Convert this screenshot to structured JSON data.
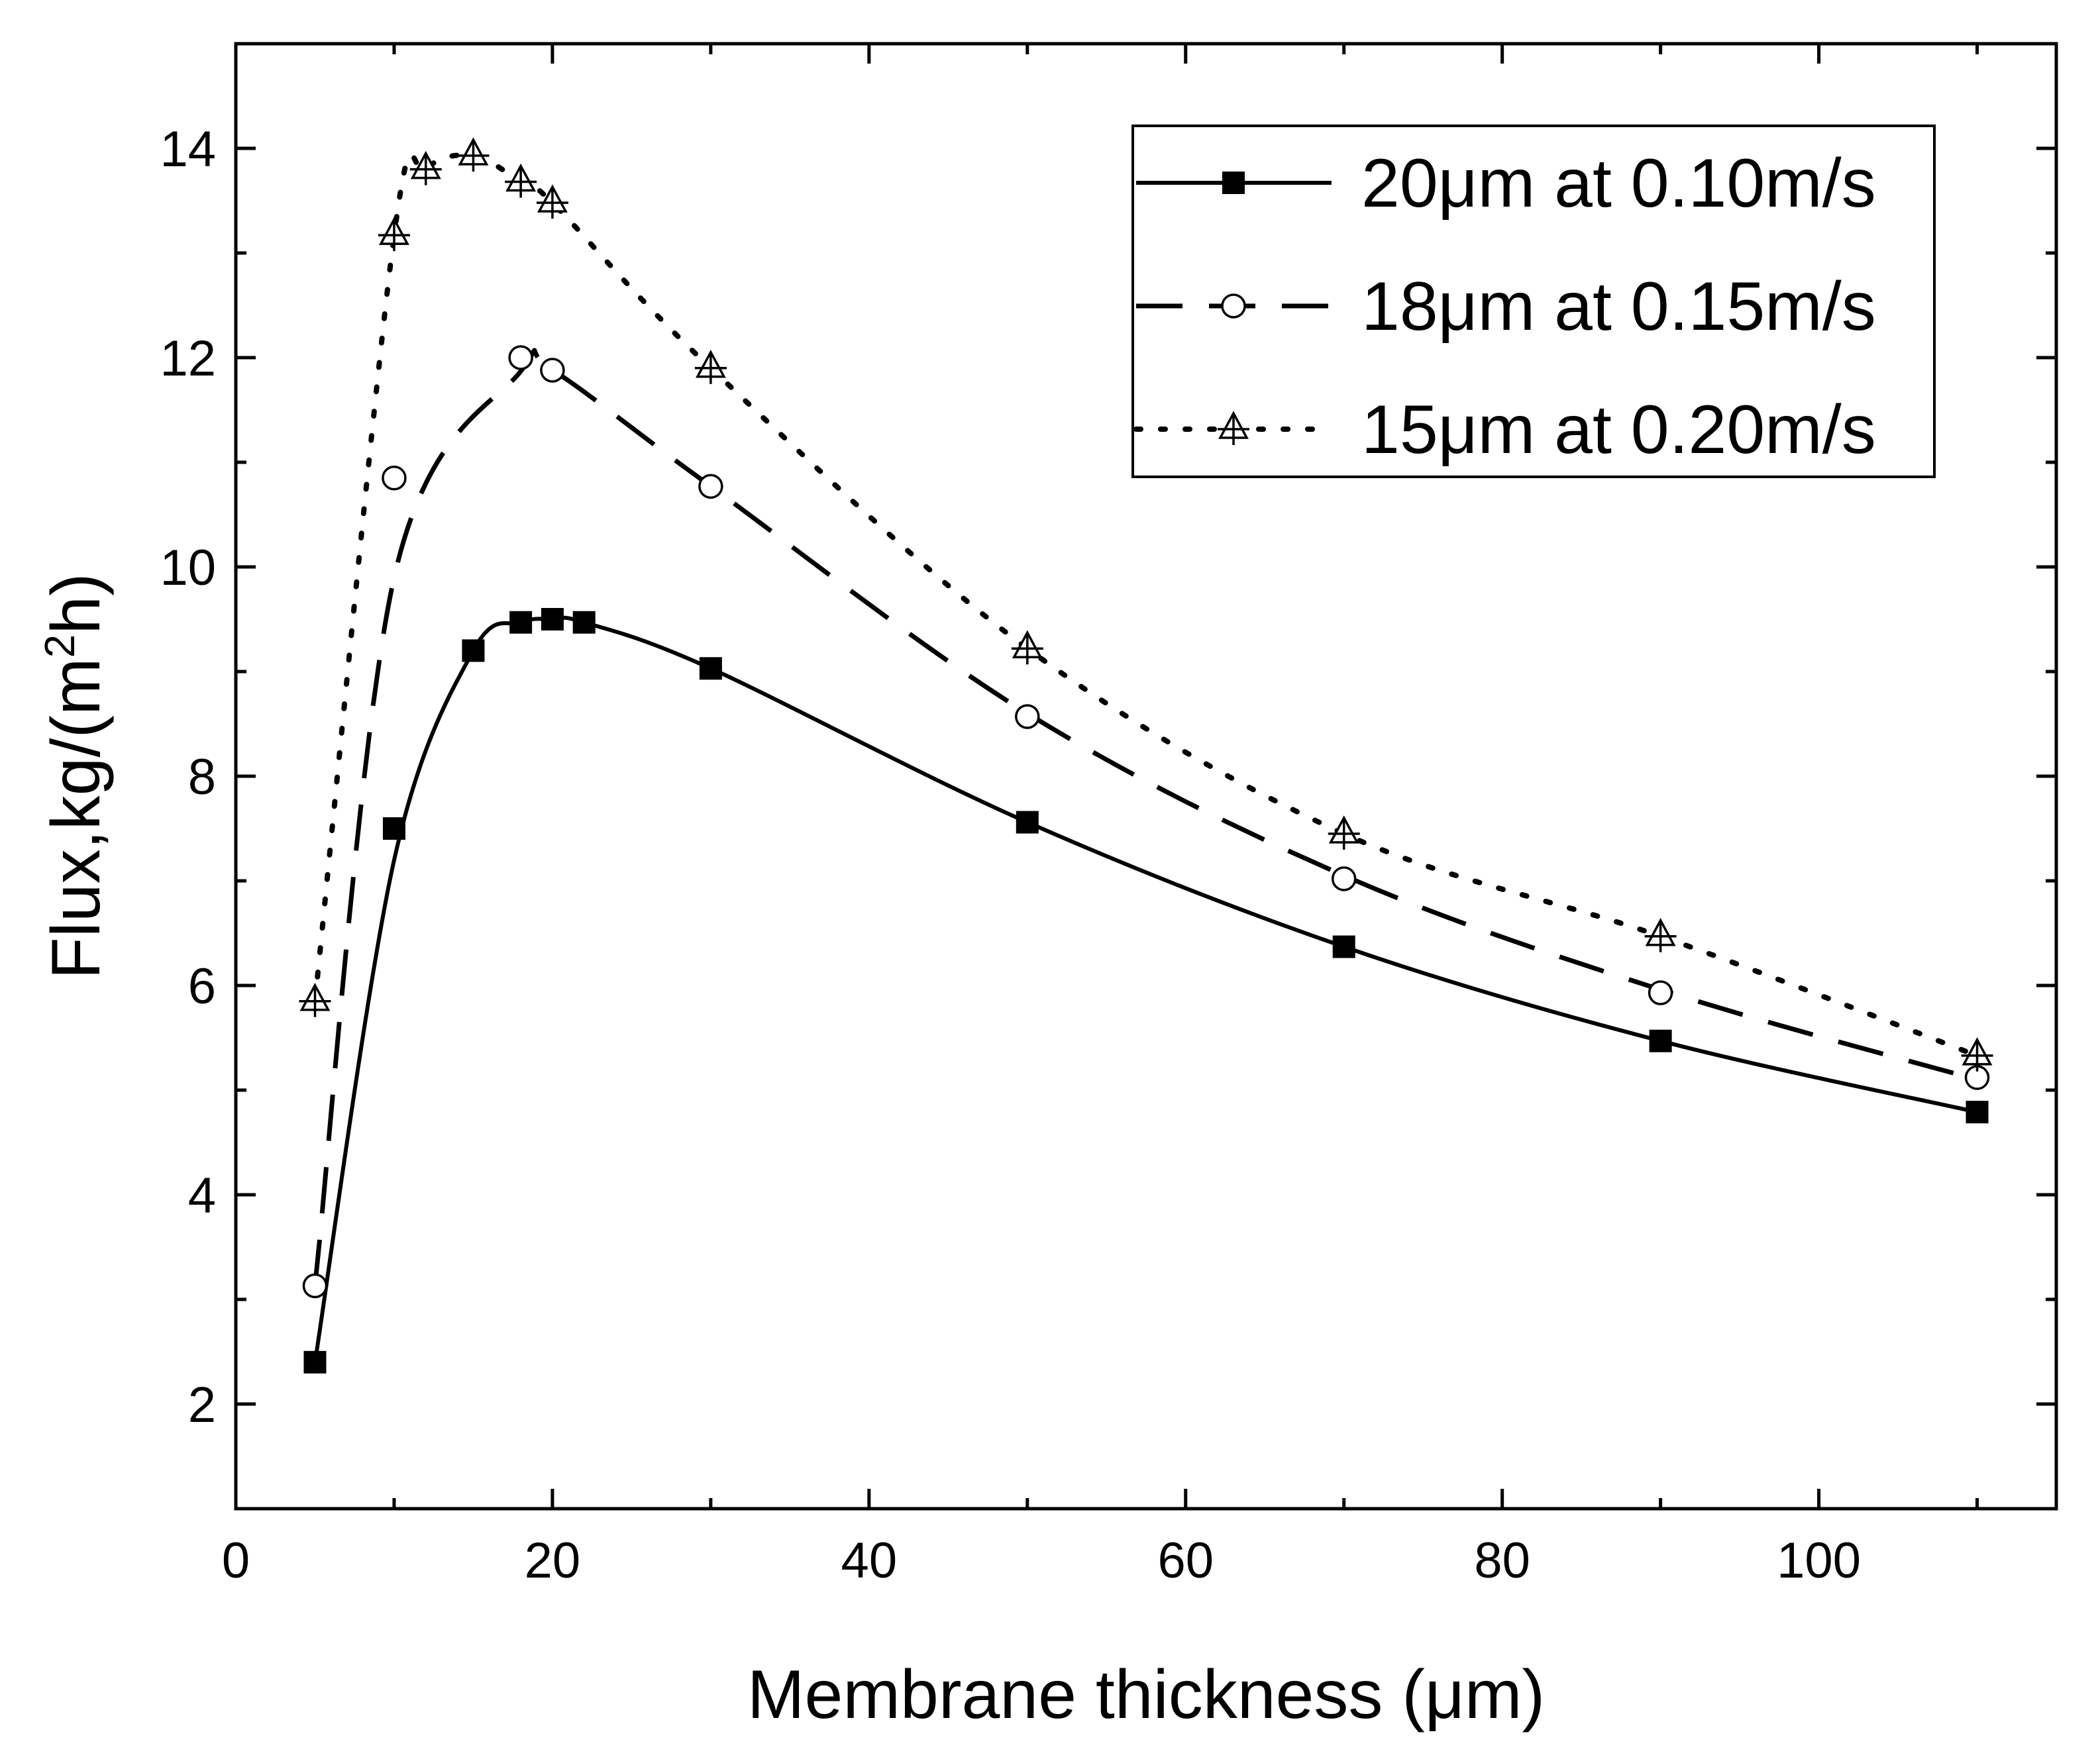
{
  "chart_data": {
    "type": "line",
    "title": "",
    "xlabel": "Membrane thickness (μm)",
    "ylabel_main": "Flux,kg/(m",
    "ylabel_sup": "2",
    "ylabel_end": "h)",
    "xlim": [
      0,
      115
    ],
    "ylim": [
      1,
      15
    ],
    "xticks": [
      0,
      20,
      40,
      60,
      80,
      100
    ],
    "yticks": [
      2,
      4,
      6,
      8,
      10,
      12,
      14
    ],
    "grid": false,
    "legend_position": "top-right",
    "series": [
      {
        "name": "20μm at 0.10m/s",
        "marker": "filled-square",
        "line_style": "solid",
        "color": "#000000",
        "x": [
          5,
          10,
          15,
          18,
          20,
          22,
          30,
          50,
          70,
          90,
          110
        ],
        "y": [
          2.4,
          7.5,
          9.2,
          9.47,
          9.5,
          9.47,
          9.03,
          7.56,
          6.37,
          5.47,
          4.79
        ],
        "curve_x": [
          5,
          10,
          15,
          18,
          20,
          22,
          30,
          50,
          70,
          90,
          110
        ],
        "curve_y": [
          2.4,
          7.2,
          9.2,
          9.47,
          9.5,
          9.47,
          9.03,
          7.56,
          6.37,
          5.47,
          4.79
        ]
      },
      {
        "name": "18μm at 0.15m/s",
        "marker": "open-circle",
        "line_style": "dashed",
        "color": "#000000",
        "x": [
          5,
          10,
          18,
          20,
          30,
          50,
          70,
          90,
          110
        ],
        "y": [
          3.13,
          10.85,
          12.0,
          11.88,
          10.77,
          8.57,
          7.02,
          5.93,
          5.12
        ],
        "curve_x": [
          5,
          10,
          18,
          20,
          30,
          50,
          70,
          90,
          110
        ],
        "curve_y": [
          3.13,
          9.9,
          11.87,
          11.88,
          10.77,
          8.6,
          7.05,
          5.96,
          5.1
        ]
      },
      {
        "name": "15μm at 0.20m/s",
        "marker": "open-triangle-cross",
        "line_style": "dotted",
        "color": "#000000",
        "x": [
          5,
          10,
          12,
          15,
          18,
          20,
          30,
          50,
          70,
          90,
          110
        ],
        "y": [
          5.85,
          13.17,
          13.8,
          13.93,
          13.68,
          13.48,
          11.9,
          9.22,
          7.45,
          6.47,
          5.33
        ],
        "curve_x": [
          5,
          10,
          12,
          15,
          18,
          20,
          30,
          50,
          70,
          90,
          110
        ],
        "curve_y": [
          5.85,
          13.17,
          13.8,
          13.93,
          13.68,
          13.48,
          11.9,
          9.22,
          7.45,
          6.47,
          5.33
        ]
      }
    ]
  }
}
